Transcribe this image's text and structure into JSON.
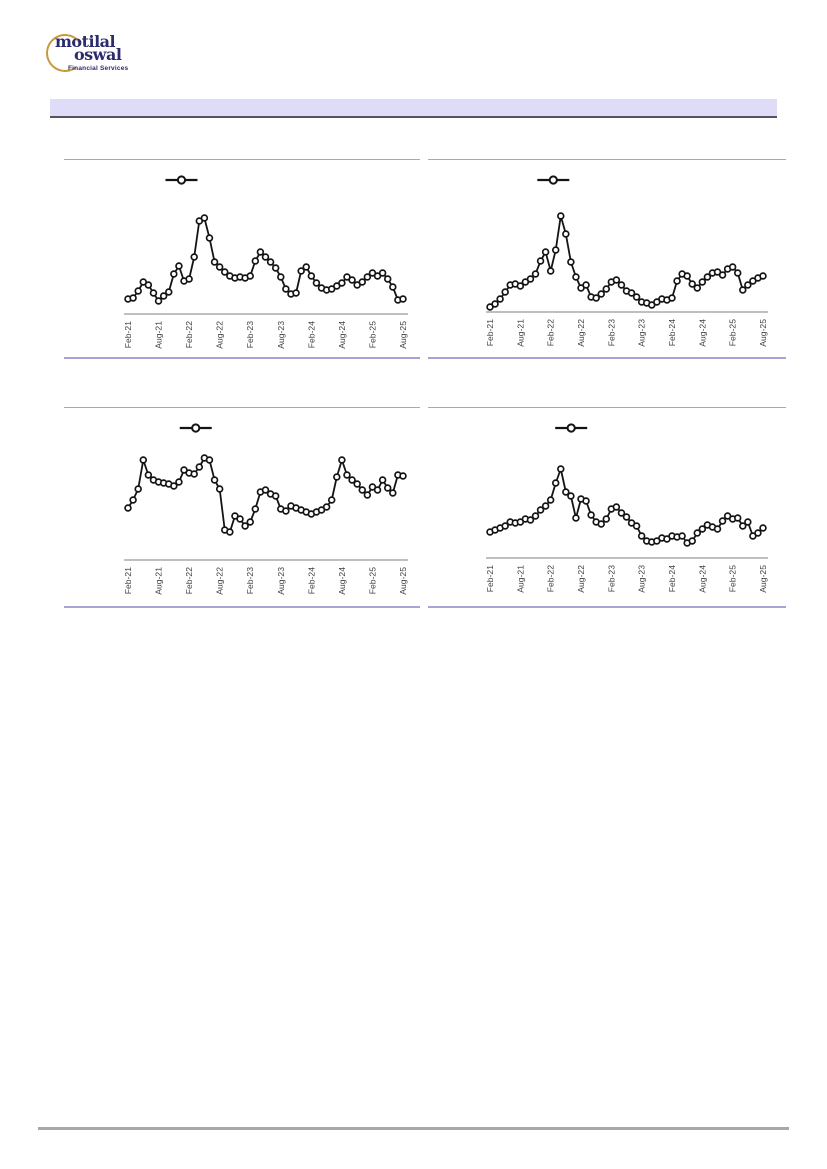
{
  "logo": {
    "line1": "motilal",
    "line2": "oswal",
    "tagline": "Financial Services",
    "text_color": "#2b2b6e",
    "ring_color": "#c49a3c"
  },
  "header_band": {
    "text": "",
    "fill": "#dedcf6",
    "underline_color": "#54545c"
  },
  "footer": {
    "divider_color": "#a8a8a8"
  },
  "chart_style": {
    "line_color": "#141414",
    "marker_fill": "#ffffff",
    "axis_color": "#7f7f7f",
    "tick_label_color": "#3f3f3f",
    "frame_border_color": "#a6a4d4"
  },
  "chart_data": [
    {
      "position": "top_left",
      "type": "line",
      "title": "",
      "grid": false,
      "y_axis_visible": false,
      "ylim": [
        0,
        110
      ],
      "marker": "open-circle",
      "legend": {
        "visible": true,
        "label": "",
        "center_x_pct": 33
      },
      "x_tick_step": 6,
      "x_tick_labels": [
        "Feb-21",
        "Aug-21",
        "Feb-22",
        "Aug-22",
        "Feb-23",
        "Aug-23",
        "Feb-24",
        "Aug-24",
        "Feb-25",
        "Aug-25"
      ],
      "categories": [
        "Feb-21",
        "Mar-21",
        "Apr-21",
        "May-21",
        "Jun-21",
        "Jul-21",
        "Aug-21",
        "Sep-21",
        "Oct-21",
        "Nov-21",
        "Dec-21",
        "Jan-22",
        "Feb-22",
        "Mar-22",
        "Apr-22",
        "May-22",
        "Jun-22",
        "Jul-22",
        "Aug-22",
        "Sep-22",
        "Oct-22",
        "Nov-22",
        "Dec-22",
        "Jan-23",
        "Feb-23",
        "Mar-23",
        "Apr-23",
        "May-23",
        "Jun-23",
        "Jul-23",
        "Aug-23",
        "Sep-23",
        "Oct-23",
        "Nov-23",
        "Dec-23",
        "Jan-24",
        "Feb-24",
        "Mar-24",
        "Apr-24",
        "May-24",
        "Jun-24",
        "Jul-24",
        "Aug-24",
        "Sep-24",
        "Oct-24",
        "Nov-24",
        "Dec-24",
        "Jan-25",
        "Feb-25",
        "Mar-25",
        "Apr-25",
        "May-25",
        "Jun-25",
        "Jul-25",
        "Aug-25"
      ],
      "series": [
        {
          "name": "",
          "values": [
            15,
            16,
            23,
            32,
            29,
            21,
            13,
            18,
            22,
            40,
            48,
            33,
            35,
            57,
            93,
            96,
            76,
            52,
            47,
            42,
            38,
            36,
            37,
            36,
            38,
            53,
            62,
            57,
            52,
            46,
            37,
            25,
            20,
            21,
            43,
            47,
            38,
            31,
            26,
            24,
            25,
            28,
            31,
            37,
            34,
            29,
            32,
            37,
            41,
            38,
            41,
            35,
            27,
            14,
            15
          ]
        }
      ]
    },
    {
      "position": "top_right",
      "type": "line",
      "title": "",
      "grid": false,
      "y_axis_visible": false,
      "ylim": [
        0,
        110
      ],
      "marker": "open-circle",
      "legend": {
        "visible": true,
        "label": "",
        "center_x_pct": 35
      },
      "x_tick_step": 6,
      "x_tick_labels": [
        "Feb-21",
        "Aug-21",
        "Feb-22",
        "Aug-22",
        "Feb-23",
        "Aug-23",
        "Feb-24",
        "Aug-24",
        "Feb-25",
        "Aug-25"
      ],
      "categories": [
        "Feb-21",
        "Mar-21",
        "Apr-21",
        "May-21",
        "Jun-21",
        "Jul-21",
        "Aug-21",
        "Sep-21",
        "Oct-21",
        "Nov-21",
        "Dec-21",
        "Jan-22",
        "Feb-22",
        "Mar-22",
        "Apr-22",
        "May-22",
        "Jun-22",
        "Jul-22",
        "Aug-22",
        "Sep-22",
        "Oct-22",
        "Nov-22",
        "Dec-22",
        "Jan-23",
        "Feb-23",
        "Mar-23",
        "Apr-23",
        "May-23",
        "Jun-23",
        "Jul-23",
        "Aug-23",
        "Sep-23",
        "Oct-23",
        "Nov-23",
        "Dec-23",
        "Jan-24",
        "Feb-24",
        "Mar-24",
        "Apr-24",
        "May-24",
        "Jun-24",
        "Jul-24",
        "Aug-24",
        "Sep-24",
        "Oct-24",
        "Nov-24",
        "Dec-24",
        "Jan-25",
        "Feb-25",
        "Mar-25",
        "Apr-25",
        "May-25",
        "Jun-25",
        "Jul-25",
        "Aug-25"
      ],
      "series": [
        {
          "name": "",
          "values": [
            5,
            8,
            13,
            20,
            27,
            28,
            26,
            30,
            33,
            38,
            51,
            60,
            41,
            62,
            96,
            78,
            50,
            35,
            24,
            27,
            15,
            14,
            18,
            23,
            30,
            32,
            27,
            21,
            19,
            15,
            10,
            9,
            7,
            10,
            13,
            12,
            14,
            31,
            38,
            36,
            28,
            24,
            30,
            35,
            39,
            40,
            37,
            43,
            45,
            39,
            22,
            27,
            31,
            34,
            36
          ]
        }
      ]
    },
    {
      "position": "bottom_left",
      "type": "line",
      "title": "",
      "grid": false,
      "y_axis_visible": false,
      "ylim": [
        0,
        110
      ],
      "marker": "open-circle",
      "legend": {
        "visible": true,
        "label": "",
        "center_x_pct": 37
      },
      "x_tick_step": 6,
      "x_tick_labels": [
        "Feb-21",
        "Aug-21",
        "Feb-22",
        "Aug-22",
        "Feb-23",
        "Aug-23",
        "Feb-24",
        "Aug-24",
        "Feb-25",
        "Aug-25"
      ],
      "categories": [
        "Feb-21",
        "Mar-21",
        "Apr-21",
        "May-21",
        "Jun-21",
        "Jul-21",
        "Aug-21",
        "Sep-21",
        "Oct-21",
        "Nov-21",
        "Dec-21",
        "Jan-22",
        "Feb-22",
        "Mar-22",
        "Apr-22",
        "May-22",
        "Jun-22",
        "Jul-22",
        "Aug-22",
        "Sep-22",
        "Oct-22",
        "Nov-22",
        "Dec-22",
        "Jan-23",
        "Feb-23",
        "Mar-23",
        "Apr-23",
        "May-23",
        "Jun-23",
        "Jul-23",
        "Aug-23",
        "Sep-23",
        "Oct-23",
        "Nov-23",
        "Dec-23",
        "Jan-24",
        "Feb-24",
        "Mar-24",
        "Apr-24",
        "May-24",
        "Jun-24",
        "Jul-24",
        "Aug-24",
        "Sep-24",
        "Oct-24",
        "Nov-24",
        "Dec-24",
        "Jan-25",
        "Feb-25",
        "Mar-25",
        "Apr-25",
        "May-25",
        "Jun-25",
        "Jul-25",
        "Aug-25"
      ],
      "series": [
        {
          "name": "",
          "values": [
            52,
            60,
            71,
            100,
            85,
            80,
            78,
            77,
            76,
            74,
            78,
            90,
            87,
            86,
            93,
            102,
            100,
            80,
            71,
            30,
            28,
            44,
            41,
            34,
            38,
            51,
            68,
            70,
            66,
            64,
            51,
            49,
            54,
            52,
            50,
            48,
            46,
            48,
            50,
            53,
            60,
            83,
            100,
            85,
            80,
            76,
            70,
            65,
            73,
            70,
            80,
            72,
            67,
            85,
            84
          ]
        }
      ]
    },
    {
      "position": "bottom_right",
      "type": "line",
      "title": "",
      "grid": false,
      "y_axis_visible": false,
      "ylim": [
        0,
        110
      ],
      "marker": "open-circle",
      "legend": {
        "visible": true,
        "label": "",
        "center_x_pct": 40
      },
      "x_tick_step": 6,
      "x_tick_labels": [
        "Feb-21",
        "Aug-21",
        "Feb-22",
        "Aug-22",
        "Feb-23",
        "Aug-23",
        "Feb-24",
        "Aug-24",
        "Feb-25",
        "Aug-25"
      ],
      "categories": [
        "Feb-21",
        "Mar-21",
        "Apr-21",
        "May-21",
        "Jun-21",
        "Jul-21",
        "Aug-21",
        "Sep-21",
        "Oct-21",
        "Nov-21",
        "Dec-21",
        "Jan-22",
        "Feb-22",
        "Mar-22",
        "Apr-22",
        "May-22",
        "Jun-22",
        "Jul-22",
        "Aug-22",
        "Sep-22",
        "Oct-22",
        "Nov-22",
        "Dec-22",
        "Jan-23",
        "Feb-23",
        "Mar-23",
        "Apr-23",
        "May-23",
        "Jun-23",
        "Jul-23",
        "Aug-23",
        "Sep-23",
        "Oct-23",
        "Nov-23",
        "Dec-23",
        "Jan-24",
        "Feb-24",
        "Mar-24",
        "Apr-24",
        "May-24",
        "Jun-24",
        "Jul-24",
        "Aug-24",
        "Sep-24",
        "Oct-24",
        "Nov-24",
        "Dec-24",
        "Jan-25",
        "Feb-25",
        "Mar-25",
        "Apr-25",
        "May-25",
        "Jun-25",
        "Jul-25",
        "Aug-25"
      ],
      "series": [
        {
          "name": "",
          "values": [
            26,
            28,
            30,
            32,
            36,
            35,
            36,
            39,
            38,
            42,
            48,
            52,
            58,
            75,
            89,
            66,
            62,
            40,
            59,
            57,
            43,
            36,
            34,
            39,
            49,
            51,
            45,
            41,
            35,
            32,
            22,
            17,
            16,
            17,
            20,
            19,
            22,
            21,
            22,
            15,
            17,
            25,
            29,
            33,
            31,
            29,
            37,
            42,
            39,
            40,
            32,
            36,
            22,
            25,
            30
          ]
        }
      ]
    }
  ]
}
